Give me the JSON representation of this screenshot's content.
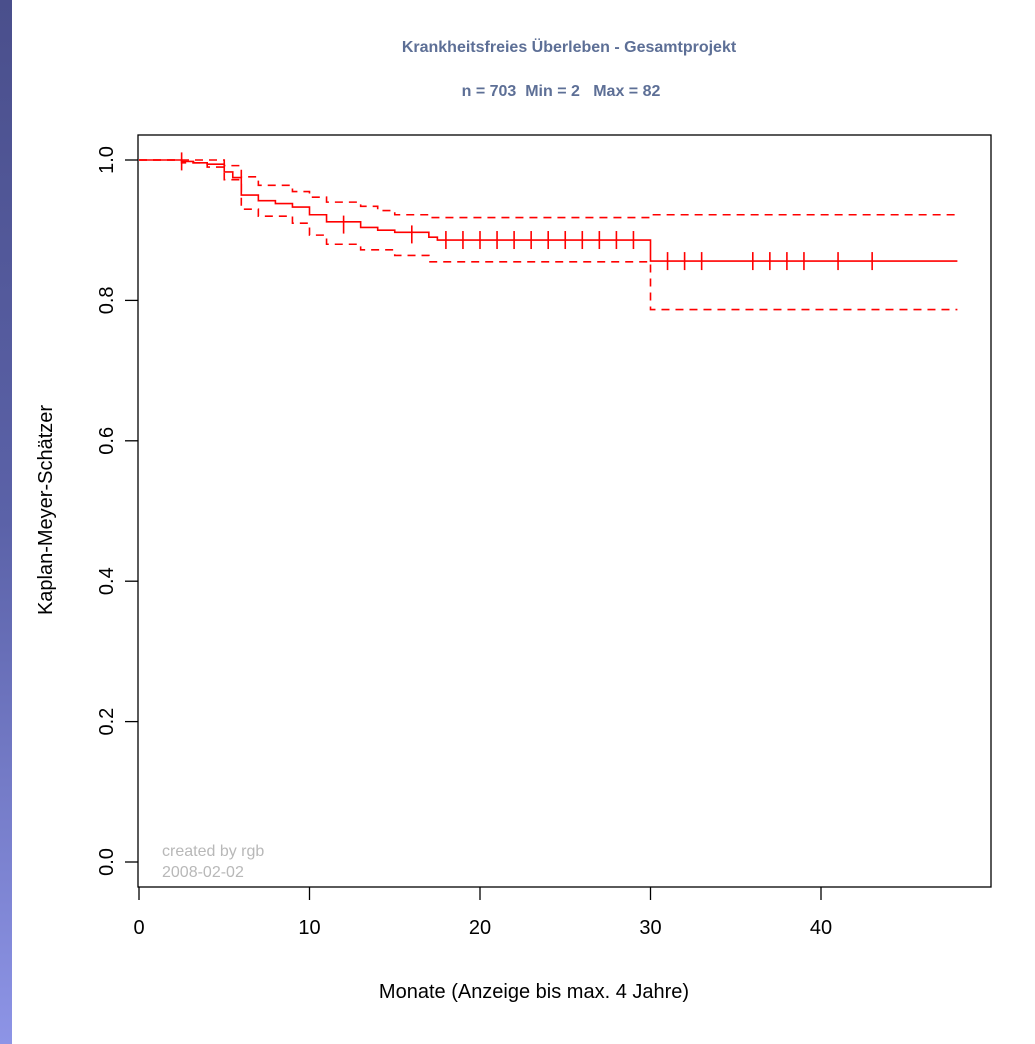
{
  "chart_data": {
    "type": "line",
    "title": "Krankheitsfreies Überleben - Gesamtprojekt",
    "subtitle": "n = 703  Min = 2   Max = 82",
    "xlabel": "Monate (Anzeige bis max. 4 Jahre)",
    "ylabel": "Kaplan-Meyer-Schätzer",
    "xlim": [
      0,
      50
    ],
    "ylim": [
      0.0,
      1.0
    ],
    "x_ticks": [
      "0",
      "10",
      "20",
      "30",
      "40"
    ],
    "x_tick_values": [
      0,
      10,
      20,
      30,
      40
    ],
    "y_ticks": [
      "0.0",
      "0.2",
      "0.4",
      "0.6",
      "0.8",
      "1.0"
    ],
    "y_tick_values": [
      0.0,
      0.2,
      0.4,
      0.6,
      0.8,
      1.0
    ],
    "grid": false,
    "series_color": "#ff0000",
    "series": [
      {
        "role": "estimate",
        "style": "solid",
        "steps": [
          [
            0,
            1.0
          ],
          [
            2.5,
            0.998
          ],
          [
            3.2,
            0.996
          ],
          [
            4,
            0.994
          ],
          [
            5,
            0.983
          ],
          [
            5.5,
            0.975
          ],
          [
            6,
            0.95
          ],
          [
            7,
            0.942
          ],
          [
            8,
            0.938
          ],
          [
            9,
            0.933
          ],
          [
            10,
            0.922
          ],
          [
            11,
            0.912
          ],
          [
            13,
            0.904
          ],
          [
            14,
            0.9
          ],
          [
            15,
            0.897
          ],
          [
            17,
            0.89
          ],
          [
            17.5,
            0.886
          ],
          [
            30,
            0.856
          ],
          [
            48,
            0.856
          ]
        ]
      },
      {
        "role": "upper_confidence",
        "style": "dashed",
        "steps": [
          [
            0,
            1.0
          ],
          [
            5,
            1.0
          ],
          [
            5,
            0.992
          ],
          [
            6,
            0.976
          ],
          [
            7,
            0.964
          ],
          [
            9,
            0.955
          ],
          [
            10,
            0.947
          ],
          [
            11,
            0.94
          ],
          [
            13,
            0.934
          ],
          [
            14,
            0.928
          ],
          [
            15,
            0.922
          ],
          [
            17,
            0.918
          ],
          [
            30,
            0.922
          ],
          [
            48,
            0.922
          ]
        ]
      },
      {
        "role": "lower_confidence",
        "style": "dashed",
        "steps": [
          [
            0,
            1.0
          ],
          [
            2.5,
            0.996
          ],
          [
            4,
            0.99
          ],
          [
            5,
            0.972
          ],
          [
            6,
            0.93
          ],
          [
            7,
            0.92
          ],
          [
            9,
            0.91
          ],
          [
            10,
            0.893
          ],
          [
            11,
            0.88
          ],
          [
            13,
            0.872
          ],
          [
            15,
            0.864
          ],
          [
            17,
            0.855
          ],
          [
            30,
            0.787
          ],
          [
            48,
            0.787
          ]
        ]
      }
    ],
    "censor_marks": [
      {
        "x": 2.5,
        "y": 0.998
      },
      {
        "x": 12,
        "y": 0.908
      },
      {
        "x": 16,
        "y": 0.894
      },
      {
        "x": 18,
        "y": 0.886
      },
      {
        "x": 19,
        "y": 0.886
      },
      {
        "x": 20,
        "y": 0.886
      },
      {
        "x": 21,
        "y": 0.886
      },
      {
        "x": 22,
        "y": 0.886
      },
      {
        "x": 23,
        "y": 0.886
      },
      {
        "x": 24,
        "y": 0.886
      },
      {
        "x": 25,
        "y": 0.886
      },
      {
        "x": 26,
        "y": 0.886
      },
      {
        "x": 27,
        "y": 0.886
      },
      {
        "x": 28,
        "y": 0.886
      },
      {
        "x": 29,
        "y": 0.886
      },
      {
        "x": 31,
        "y": 0.856
      },
      {
        "x": 32,
        "y": 0.856
      },
      {
        "x": 33,
        "y": 0.856
      },
      {
        "x": 36,
        "y": 0.856
      },
      {
        "x": 37,
        "y": 0.856
      },
      {
        "x": 38,
        "y": 0.856
      },
      {
        "x": 39,
        "y": 0.856
      },
      {
        "x": 41,
        "y": 0.856
      },
      {
        "x": 43,
        "y": 0.856
      }
    ]
  },
  "credit": {
    "line1": "created by rgb",
    "line2": "2008-02-02"
  }
}
